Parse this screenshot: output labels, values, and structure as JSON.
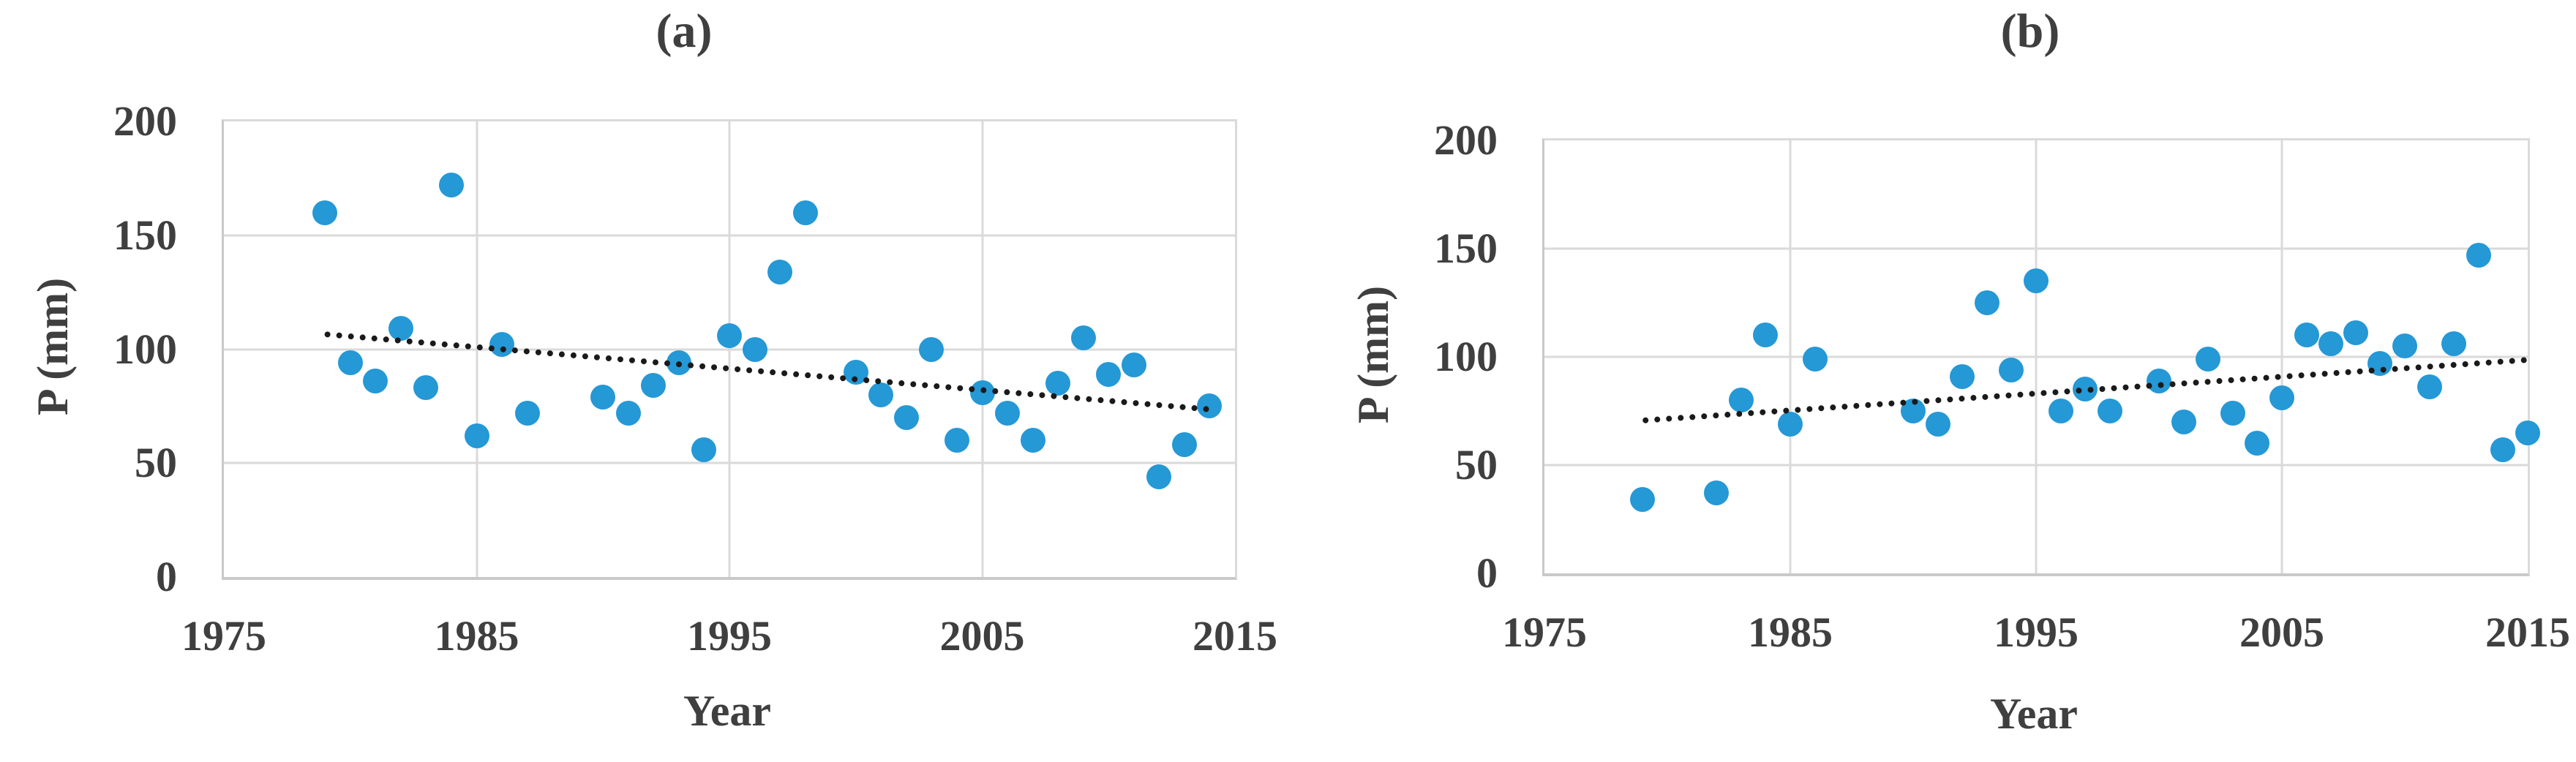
{
  "colors": {
    "marker": "#2598D6",
    "trendline": "#1A1A1A",
    "gridline": "#DADADA",
    "axis": "#C9C9C9",
    "text": "#3F3F3F"
  },
  "chart_data": [
    {
      "type": "scatter",
      "title": "(a)",
      "xlabel": "Year",
      "ylabel": "P (mm)",
      "xlim": [
        1975,
        2015
      ],
      "ylim": [
        0,
        200
      ],
      "xticks": [
        1975,
        1985,
        1995,
        2005,
        2015
      ],
      "yticks": [
        0,
        50,
        100,
        150,
        200
      ],
      "grid": true,
      "legend": "none",
      "series": [
        {
          "name": "P (mm)",
          "points": [
            [
              1979,
              160
            ],
            [
              1980,
              94
            ],
            [
              1981,
              86
            ],
            [
              1982,
              109
            ],
            [
              1983,
              83
            ],
            [
              1984,
              172
            ],
            [
              1985,
              62
            ],
            [
              1986,
              102
            ],
            [
              1987,
              72
            ],
            [
              1990,
              79
            ],
            [
              1991,
              72
            ],
            [
              1992,
              84
            ],
            [
              1993,
              94
            ],
            [
              1994,
              56
            ],
            [
              1995,
              106
            ],
            [
              1996,
              100
            ],
            [
              1997,
              134
            ],
            [
              1998,
              160
            ],
            [
              2000,
              90
            ],
            [
              2001,
              80
            ],
            [
              2002,
              70
            ],
            [
              2003,
              100
            ],
            [
              2004,
              60
            ],
            [
              2005,
              81
            ],
            [
              2006,
              72
            ],
            [
              2007,
              60
            ],
            [
              2008,
              85
            ],
            [
              2009,
              105
            ],
            [
              2010,
              89
            ],
            [
              2011,
              93
            ],
            [
              2012,
              44
            ],
            [
              2013,
              58
            ],
            [
              2014,
              75
            ]
          ]
        }
      ],
      "trendline": {
        "style": "dotted",
        "x1": 1979,
        "y1": 108,
        "x2": 2014,
        "y2": 75
      }
    },
    {
      "type": "scatter",
      "title": "(b)",
      "xlabel": "Year",
      "ylabel": "P (mm)",
      "xlim": [
        1975,
        2015
      ],
      "ylim": [
        0,
        200
      ],
      "xticks": [
        1975,
        1985,
        1995,
        2005,
        2015
      ],
      "yticks": [
        0,
        50,
        100,
        150,
        200
      ],
      "grid": true,
      "legend": "none",
      "series": [
        {
          "name": "P (mm)",
          "points": [
            [
              1979,
              34
            ],
            [
              1982,
              37
            ],
            [
              1983,
              80
            ],
            [
              1984,
              110
            ],
            [
              1985,
              69
            ],
            [
              1986,
              99
            ],
            [
              1990,
              75
            ],
            [
              1991,
              69
            ],
            [
              1992,
              91
            ],
            [
              1993,
              125
            ],
            [
              1994,
              94
            ],
            [
              1995,
              135
            ],
            [
              1996,
              75
            ],
            [
              1997,
              85
            ],
            [
              1998,
              75
            ],
            [
              2000,
              89
            ],
            [
              2001,
              70
            ],
            [
              2002,
              99
            ],
            [
              2003,
              74
            ],
            [
              2004,
              60
            ],
            [
              2005,
              81
            ],
            [
              2006,
              110
            ],
            [
              2007,
              106
            ],
            [
              2008,
              111
            ],
            [
              2009,
              97
            ],
            [
              2010,
              105
            ],
            [
              2011,
              86
            ],
            [
              2012,
              106
            ],
            [
              2013,
              147
            ],
            [
              2014,
              57
            ],
            [
              2015,
              65
            ]
          ]
        }
      ],
      "trendline": {
        "style": "dotted",
        "x1": 1979,
        "y1": 72,
        "x2": 2015,
        "y2": 100
      }
    }
  ]
}
